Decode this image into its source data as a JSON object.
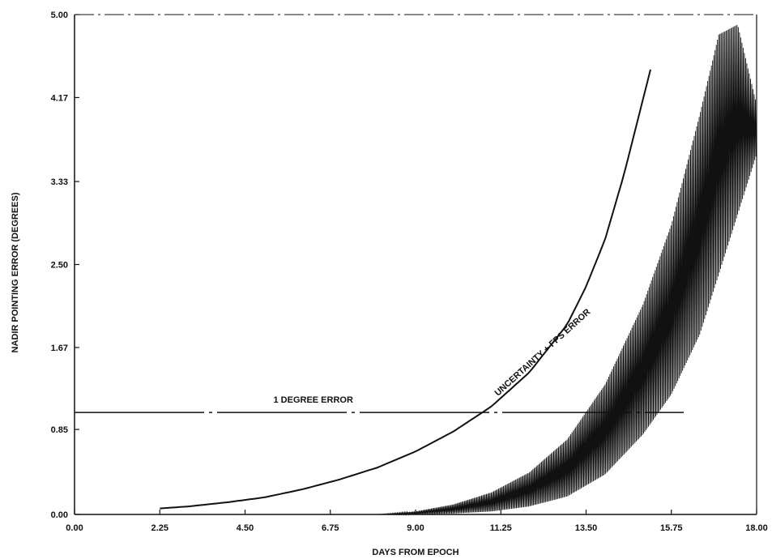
{
  "chart_data": {
    "type": "line",
    "title": "",
    "xlabel": "DAYS FROM EPOCH",
    "ylabel": "NADIR POINTING ERROR (DEGREES)",
    "xlim": [
      0,
      18
    ],
    "ylim": [
      0,
      5
    ],
    "x_ticks": [
      "0.00",
      "2.25",
      "4.50",
      "6.75",
      "9.00",
      "11.25",
      "13.50",
      "15.75",
      "18.00"
    ],
    "y_ticks": [
      "0.00",
      "0.85",
      "1.67",
      "2.50",
      "3.33",
      "4.17",
      "5.00"
    ],
    "grid": false,
    "legend": "none",
    "annotations": [
      {
        "text": "1 DEGREE ERROR",
        "x": 6.3,
        "y": 1.12
      },
      {
        "text": "UNCERTAINTY + FPS ERROR",
        "x": 12.4,
        "y": 1.6,
        "angle_deg": -42
      }
    ],
    "series": [
      {
        "name": "1 DEGREE ERROR",
        "style": "dash-dot",
        "x": [
          0,
          18
        ],
        "y": [
          1.02,
          1.02
        ]
      },
      {
        "name": "UNCERTAINTY + FPS ERROR",
        "style": "solid",
        "x": [
          2.25,
          3.0,
          4.0,
          5.0,
          6.0,
          7.0,
          8.0,
          9.0,
          10.0,
          11.0,
          12.0,
          13.0,
          13.5,
          14.0,
          14.5,
          14.9,
          15.2
        ],
        "y": [
          0.06,
          0.08,
          0.12,
          0.17,
          0.25,
          0.35,
          0.47,
          0.63,
          0.83,
          1.08,
          1.42,
          1.9,
          2.28,
          2.75,
          3.4,
          4.0,
          4.45
        ]
      },
      {
        "name": "",
        "style": "oscillating-envelope",
        "x": [
          8.0,
          9.0,
          10.0,
          11.0,
          12.0,
          13.0,
          14.0,
          15.0,
          15.75,
          16.5,
          17.0,
          17.5,
          18.0
        ],
        "y_upper": [
          0.0,
          0.03,
          0.1,
          0.22,
          0.42,
          0.75,
          1.3,
          2.1,
          2.9,
          4.0,
          4.8,
          4.9,
          4.1
        ],
        "y_lower": [
          0.0,
          0.0,
          0.01,
          0.03,
          0.08,
          0.18,
          0.4,
          0.8,
          1.2,
          1.8,
          2.4,
          3.0,
          3.6
        ]
      }
    ]
  }
}
